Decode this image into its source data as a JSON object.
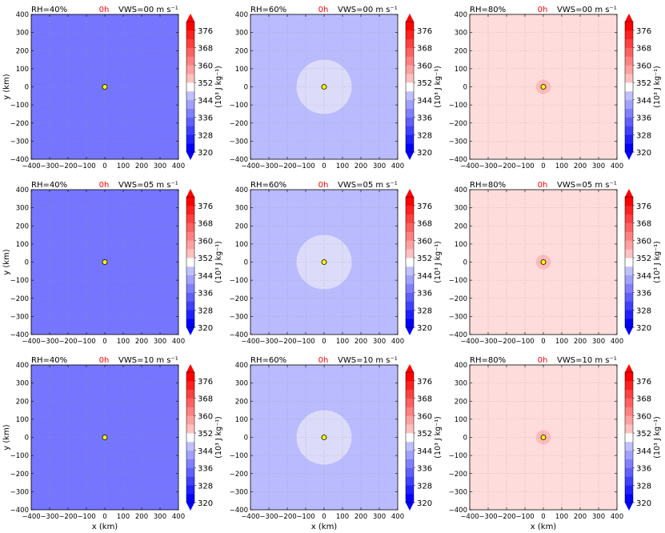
{
  "chart_data": {
    "type": "heatmap",
    "colorbar": {
      "ticks": [
        "320",
        "328",
        "336",
        "344",
        "352",
        "360",
        "368",
        "376"
      ],
      "label": "(10³ J kg⁻¹)",
      "levels": [
        320,
        324,
        328,
        332,
        336,
        340,
        344,
        348,
        352,
        356,
        360,
        364,
        368,
        372,
        376,
        380
      ]
    },
    "axes": {
      "xlim": [
        -400,
        400
      ],
      "ylim": [
        -400,
        400
      ],
      "xticks": [
        "−400",
        "−300",
        "−200",
        "−100",
        "0",
        "100",
        "200",
        "300",
        "400"
      ],
      "yticks": [
        "400",
        "300",
        "200",
        "100",
        "0",
        "−100",
        "−200",
        "−300",
        "−400"
      ],
      "xlabel": "x (km)",
      "ylabel": "y (km)",
      "grid": true
    },
    "time_label": "0h",
    "time_color": "#ff0000",
    "center_marker": {
      "x": 0,
      "y": 0,
      "color": "#ffff00"
    },
    "panels": [
      {
        "rh": "RH=40%",
        "vws": "VWS=00 m s⁻¹",
        "background_value": 335,
        "background_color": "#7575ff",
        "core": null
      },
      {
        "rh": "RH=60%",
        "vws": "VWS=00 m s⁻¹",
        "background_value": 341,
        "background_color": "#babaff",
        "core": {
          "radius_km": 150,
          "value": 346,
          "color": "#dcdcfa"
        }
      },
      {
        "rh": "RH=80%",
        "vws": "VWS=00 m s⁻¹",
        "background_value": 356,
        "background_color": "#ffdcdc",
        "core": {
          "radius_km": 40,
          "value": 360,
          "color": "#ffbaba"
        }
      },
      {
        "rh": "RH=40%",
        "vws": "VWS=05 m s⁻¹",
        "background_value": 335,
        "background_color": "#7575ff",
        "core": null
      },
      {
        "rh": "RH=60%",
        "vws": "VWS=05 m s⁻¹",
        "background_value": 341,
        "background_color": "#babaff",
        "core": {
          "radius_km": 150,
          "value": 346,
          "color": "#dcdcfa"
        }
      },
      {
        "rh": "RH=80%",
        "vws": "VWS=05 m s⁻¹",
        "background_value": 356,
        "background_color": "#ffdcdc",
        "core": {
          "radius_km": 40,
          "value": 360,
          "color": "#ffbaba"
        }
      },
      {
        "rh": "RH=40%",
        "vws": "VWS=10 m s⁻¹",
        "background_value": 335,
        "background_color": "#7575ff",
        "core": null
      },
      {
        "rh": "RH=60%",
        "vws": "VWS=10 m s⁻¹",
        "background_value": 341,
        "background_color": "#babaff",
        "core": {
          "radius_km": 150,
          "value": 346,
          "color": "#dcdcfa"
        }
      },
      {
        "rh": "RH=80%",
        "vws": "VWS=10 m s⁻¹",
        "background_value": 356,
        "background_color": "#ffdcdc",
        "core": {
          "radius_km": 40,
          "value": 360,
          "color": "#ffbaba"
        }
      }
    ]
  }
}
